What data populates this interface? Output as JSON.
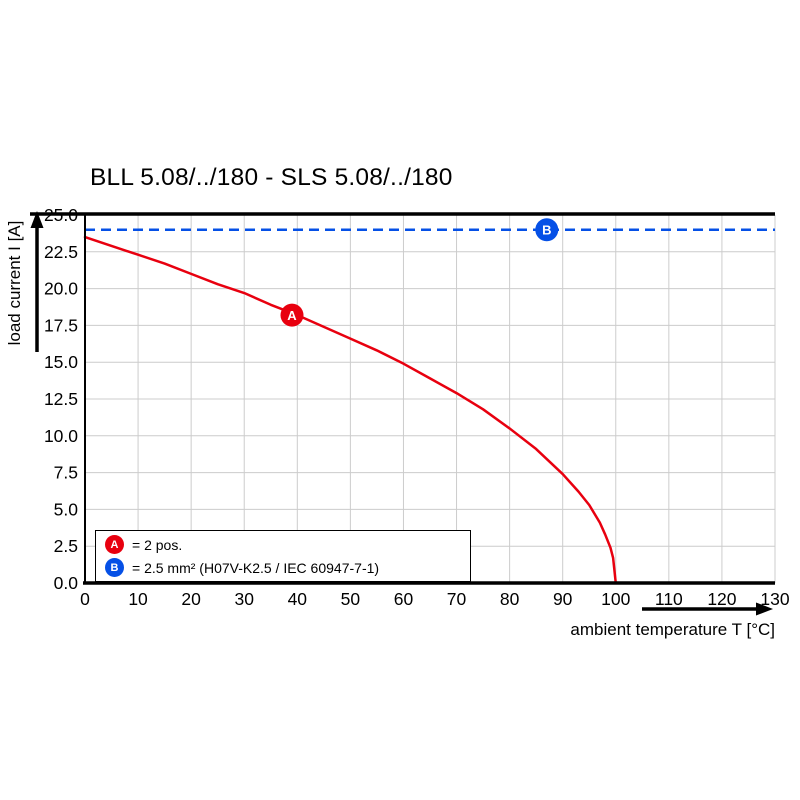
{
  "chart_data": {
    "type": "line",
    "title": "BLL 5.08/../180 - SLS 5.08/../180",
    "xlabel": "ambient temperature T [°C]",
    "ylabel": "load current I [A]",
    "xlim": [
      0,
      130
    ],
    "ylim": [
      0,
      25
    ],
    "x_ticks": [
      0,
      10,
      20,
      30,
      40,
      50,
      60,
      70,
      80,
      90,
      100,
      110,
      120,
      130
    ],
    "x_tick_labels": [
      "0",
      "10",
      "20",
      "30",
      "40",
      "50",
      "60",
      "70",
      "80",
      "90",
      "100",
      "110",
      "120",
      "130"
    ],
    "y_ticks": [
      0,
      2.5,
      5,
      7.5,
      10,
      12.5,
      15,
      17.5,
      20,
      22.5,
      25
    ],
    "y_tick_labels": [
      "0.0",
      "2.5",
      "5.0",
      "7.5",
      "10.0",
      "12.5",
      "15.0",
      "17.5",
      "20.0",
      "22.5",
      "25.0"
    ],
    "grid": true,
    "legend_position": "bottom-left",
    "series": [
      {
        "name": "A",
        "type": "derating-curve",
        "color": "#e8000f",
        "x": [
          0,
          5,
          10,
          15,
          20,
          25,
          30,
          35,
          40,
          45,
          50,
          55,
          60,
          65,
          70,
          75,
          80,
          85,
          90,
          93,
          95,
          97,
          98,
          99,
          99.5,
          100
        ],
        "y": [
          23.5,
          22.9,
          22.3,
          21.7,
          21.0,
          20.3,
          19.7,
          18.9,
          18.2,
          17.4,
          16.6,
          15.8,
          14.9,
          13.9,
          12.9,
          11.8,
          10.5,
          9.1,
          7.4,
          6.2,
          5.3,
          4.1,
          3.3,
          2.4,
          1.7,
          0
        ],
        "marker": {
          "x": 39,
          "y": 18.2,
          "label": "A"
        }
      },
      {
        "name": "B",
        "type": "horizontal-dashed-limit",
        "color": "#0550e6",
        "value": 24,
        "marker": {
          "x": 87,
          "y": 24,
          "label": "B"
        }
      }
    ],
    "legend": {
      "items": [
        {
          "key": "A",
          "text": "= 2 pos."
        },
        {
          "key": "B",
          "text": "= 2.5 mm² (H07V-K2.5 / IEC 60947-7-1)"
        }
      ]
    }
  },
  "colors": {
    "red": "#e8000f",
    "blue": "#0550e6",
    "grid": "#cccccc",
    "axis": "#000000",
    "background": "#ffffff"
  }
}
